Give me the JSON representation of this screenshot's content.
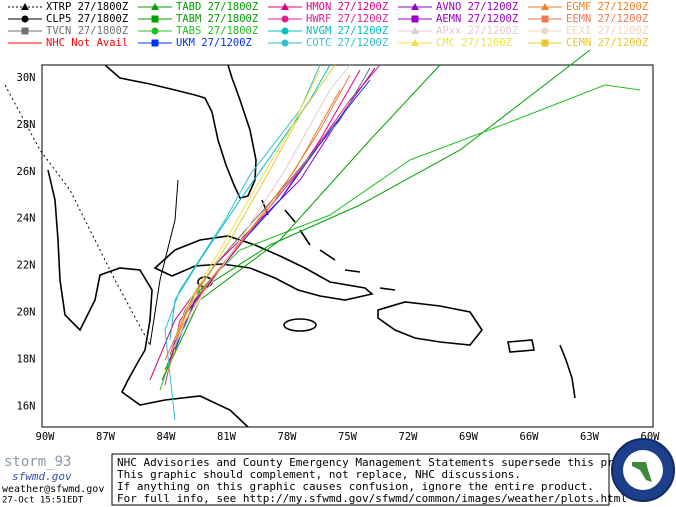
{
  "legend": [
    {
      "label": "XTRP 27/1800Z",
      "color": "#000000",
      "marker": "triangle"
    },
    {
      "label": "TABD 27/1800Z",
      "color": "#00a000",
      "marker": "triangle"
    },
    {
      "label": "HMON 27/1200Z",
      "color": "#e0007a",
      "marker": "triangle"
    },
    {
      "label": "AVNO 27/1200Z",
      "color": "#9a00c8",
      "marker": "triangle"
    },
    {
      "label": "EGMF 27/1200Z",
      "color": "#f08020",
      "marker": "triangle"
    },
    {
      "label": "CLP5 27/1800Z",
      "color": "#000000",
      "marker": "circle"
    },
    {
      "label": "TABM 27/1800Z",
      "color": "#00a000",
      "marker": "square"
    },
    {
      "label": "HWRF 27/1200Z",
      "color": "#e0208a",
      "marker": "circle"
    },
    {
      "label": "AEMN 27/1200Z",
      "color": "#9a00c8",
      "marker": "square"
    },
    {
      "label": "EEMN 27/1200Z",
      "color": "#f07850",
      "marker": "square"
    },
    {
      "label": "TVCN 27/1800Z",
      "color": "#707070",
      "marker": "square"
    },
    {
      "label": "TABS 27/1800Z",
      "color": "#20c020",
      "marker": "circle"
    },
    {
      "label": "NVGM 27/1200Z",
      "color": "#00c0c0",
      "marker": "circle"
    },
    {
      "label": "APxx 27/1200Z",
      "color": "#e8c8d0",
      "marker": "triangle"
    },
    {
      "label": "EEXI 27/1200Z",
      "color": "#f0d8c0",
      "marker": "circle"
    },
    {
      "label": "NHC Not Avail",
      "color": "#ff0000",
      "marker": "none"
    },
    {
      "label": "UKM  27/1200Z",
      "color": "#0030ff",
      "marker": "square"
    },
    {
      "label": "COTC 27/1200Z",
      "color": "#30c0d0",
      "marker": "circle"
    },
    {
      "label": "CMC  27/1200Z",
      "color": "#f0e040",
      "marker": "triangle"
    },
    {
      "label": "CEMN 27/1200Z",
      "color": "#e8c830",
      "marker": "square"
    }
  ],
  "lon_labels": [
    "90W",
    "87W",
    "84W",
    "81W",
    "78W",
    "75W",
    "72W",
    "69W",
    "66W",
    "63W",
    "60W"
  ],
  "lat_labels": [
    "30N",
    "28N",
    "26N",
    "24N",
    "22N",
    "20N",
    "18N",
    "16N"
  ],
  "disclaimer": [
    "NHC Advisories and County Emergency Management Statements supersede this product.",
    "This graphic should complement, not replace, NHC discussions.",
    "If anything on this graphic causes confusion, ignore the entire product.",
    "For full info, see  http://my.sfwmd.gov/sfwmd/common/images/weather/plots.html"
  ],
  "brand": {
    "name": "storm_93",
    "site": "sfwmd.gov",
    "email": "weather@sfwmd.gov",
    "timestamp": "27-Oct 15:51EDT"
  }
}
